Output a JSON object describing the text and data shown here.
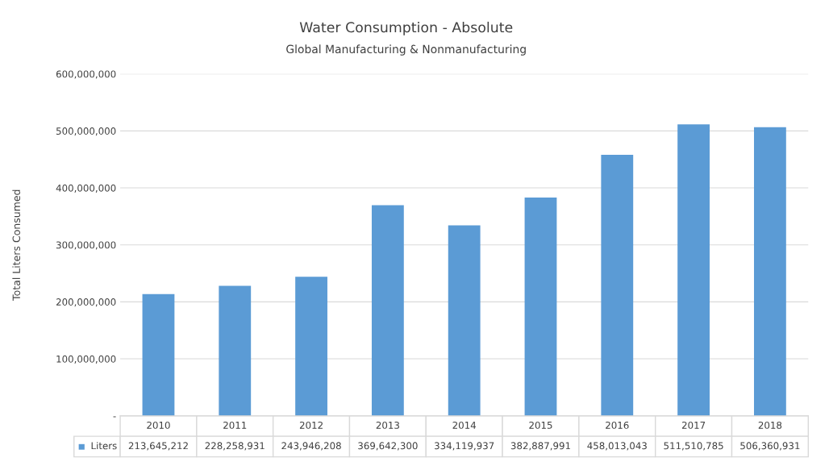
{
  "chart_data": {
    "type": "bar",
    "title": "Water Consumption - Absolute",
    "subtitle": "Global Manufacturing & Nonmanufacturing",
    "ylabel": "Total Liters Consumed",
    "categories": [
      "2010",
      "2011",
      "2012",
      "2013",
      "2014",
      "2015",
      "2016",
      "2017",
      "2018"
    ],
    "series": [
      {
        "name": "Liters",
        "color": "#5b9bd5",
        "values": [
          213645212,
          228258931,
          243946208,
          369642300,
          334119937,
          382887991,
          458013043,
          511510785,
          506360931
        ],
        "value_labels": [
          "213,645,212",
          "228,258,931",
          "243,946,208",
          "369,642,300",
          "334,119,937",
          "382,887,991",
          "458,013,043",
          "511,510,785",
          "506,360,931"
        ]
      }
    ],
    "ylim": [
      0,
      600000000
    ],
    "yticks": [
      {
        "value": 0,
        "label": "-"
      },
      {
        "value": 100000000,
        "label": "100,000,000"
      },
      {
        "value": 200000000,
        "label": "200,000,000"
      },
      {
        "value": 300000000,
        "label": "300,000,000"
      },
      {
        "value": 400000000,
        "label": "400,000,000"
      },
      {
        "value": 500000000,
        "label": "500,000,000"
      },
      {
        "value": 600000000,
        "label": "600,000,000"
      }
    ],
    "grid": "y",
    "legend": "bottom"
  }
}
